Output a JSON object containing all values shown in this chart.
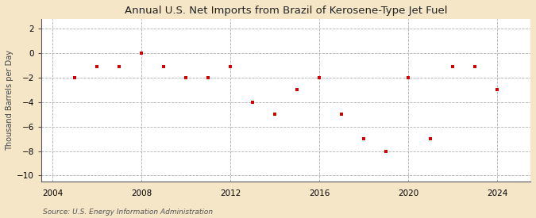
{
  "title": "Annual U.S. Net Imports from Brazil of Kerosene-Type Jet Fuel",
  "ylabel": "Thousand Barrels per Day",
  "source": "Source: U.S. Energy Information Administration",
  "background_color": "#f5e6c8",
  "plot_background": "#ffffff",
  "grid_color": "#b0b0b0",
  "point_color": "#cc0000",
  "years": [
    2005,
    2006,
    2007,
    2008,
    2009,
    2010,
    2011,
    2012,
    2013,
    2014,
    2015,
    2016,
    2017,
    2018,
    2019,
    2020,
    2021,
    2022,
    2023,
    2024
  ],
  "values": [
    -2.0,
    -1.1,
    -1.1,
    0.0,
    -1.1,
    -2.0,
    -2.0,
    -1.1,
    -4.0,
    -5.0,
    -3.0,
    -2.0,
    -5.0,
    -7.0,
    -8.0,
    -2.0,
    -7.0,
    -1.1,
    -1.1,
    -3.0
  ],
  "xlim": [
    2003.5,
    2025.5
  ],
  "ylim": [
    -10.5,
    2.8
  ],
  "yticks": [
    -10,
    -8,
    -6,
    -4,
    -2,
    0,
    2
  ],
  "xticks": [
    2004,
    2008,
    2012,
    2016,
    2020,
    2024
  ],
  "vgrid_positions": [
    2004,
    2008,
    2012,
    2016,
    2020,
    2024
  ]
}
